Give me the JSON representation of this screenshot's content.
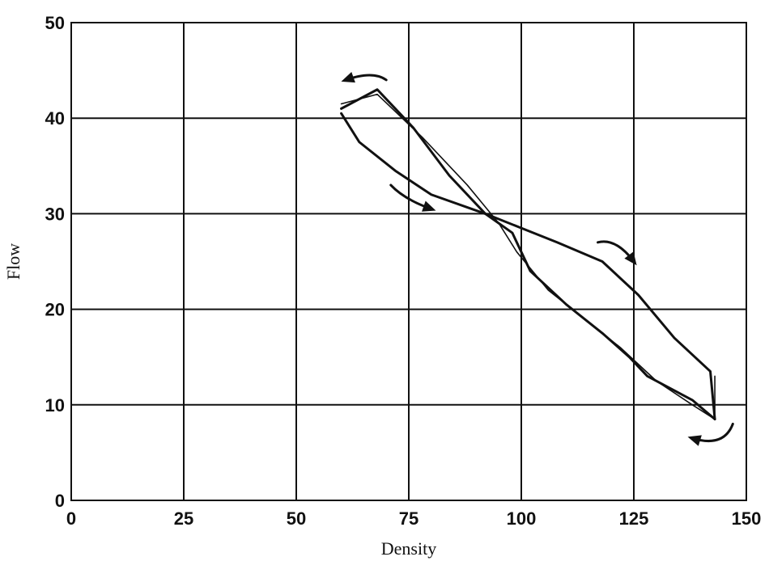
{
  "chart_data": {
    "type": "line",
    "xlabel": "Density",
    "ylabel": "Flow",
    "xlim": [
      0,
      150
    ],
    "ylim": [
      0,
      50
    ],
    "xticks": [
      "0",
      "25",
      "50",
      "75",
      "100",
      "125",
      "150"
    ],
    "yticks": [
      "0",
      "10",
      "20",
      "30",
      "40",
      "50"
    ],
    "grid": true,
    "series": [
      {
        "stroke_width": 3,
        "x": [
          60,
          64,
          72,
          80,
          92,
          100,
          108,
          118,
          126,
          134,
          142,
          143
        ],
        "y": [
          40.5,
          37.5,
          34.5,
          32.0,
          30.0,
          28.5,
          27.0,
          25.0,
          21.5,
          17.0,
          13.5,
          8.5
        ]
      },
      {
        "stroke_width": 3,
        "x": [
          143,
          138,
          132,
          128,
          124,
          118,
          110,
          102,
          98,
          92,
          84,
          76,
          68,
          60
        ],
        "y": [
          8.5,
          10.5,
          12.0,
          13.0,
          15.0,
          17.5,
          20.5,
          24.0,
          28.0,
          30.0,
          34.0,
          39.0,
          43.0,
          41.0
        ]
      },
      {
        "stroke_width": 1.6,
        "x": [
          60,
          68,
          78,
          88,
          95,
          99,
          106,
          114,
          122,
          130,
          138,
          143,
          143
        ],
        "y": [
          41.5,
          42.5,
          38.0,
          33.0,
          29.0,
          26.0,
          22.0,
          19.0,
          16.0,
          12.5,
          10.0,
          8.5,
          13.0
        ]
      }
    ],
    "arrows": [
      {
        "x": [
          70,
          67,
          61
        ],
        "y": [
          44.0,
          45.0,
          44.0
        ]
      },
      {
        "x": [
          71,
          74,
          80
        ],
        "y": [
          33.0,
          31.5,
          30.5
        ]
      },
      {
        "x": [
          117,
          121,
          125
        ],
        "y": [
          27.0,
          27.5,
          25.0
        ]
      },
      {
        "x": [
          147,
          145,
          138
        ],
        "y": [
          8.0,
          5.5,
          6.5
        ]
      }
    ]
  }
}
